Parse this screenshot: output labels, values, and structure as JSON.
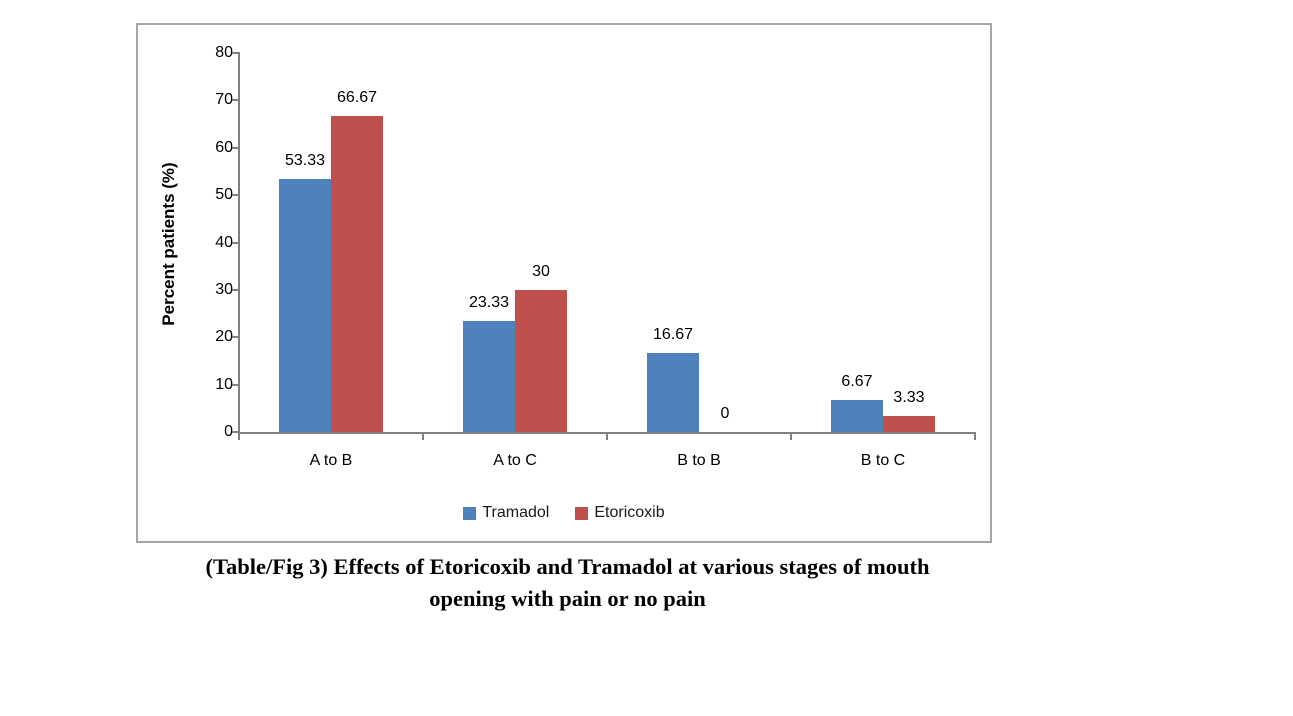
{
  "figure": {
    "caption_line1": "(Table/Fig 3) Effects of Etoricoxib and Tramadol at various stages of mouth",
    "caption_line2": "opening with pain or no pain"
  },
  "chart_data": {
    "type": "bar",
    "title": "",
    "xlabel": "",
    "ylabel": "Percent patients (%)",
    "categories": [
      "A to B",
      "A to C",
      "B to B",
      "B to C"
    ],
    "series": [
      {
        "name": "Tramadol",
        "color": "#4f81bd",
        "values": [
          53.33,
          23.33,
          16.67,
          6.67
        ],
        "labels": [
          "53.33",
          "23.33",
          "16.67",
          "6.67"
        ]
      },
      {
        "name": "Etoricoxib",
        "color": "#c0504d",
        "values": [
          66.67,
          30,
          0,
          3.33
        ],
        "labels": [
          "66.67",
          "30",
          "0",
          "3.33"
        ]
      }
    ],
    "ylim": [
      0,
      80
    ],
    "yticks": [
      0,
      10,
      20,
      30,
      40,
      50,
      60,
      70,
      80
    ],
    "grid": false,
    "legend_position": "bottom",
    "axis_color": "#808080",
    "frame_border_color": "#a6a6a6"
  }
}
